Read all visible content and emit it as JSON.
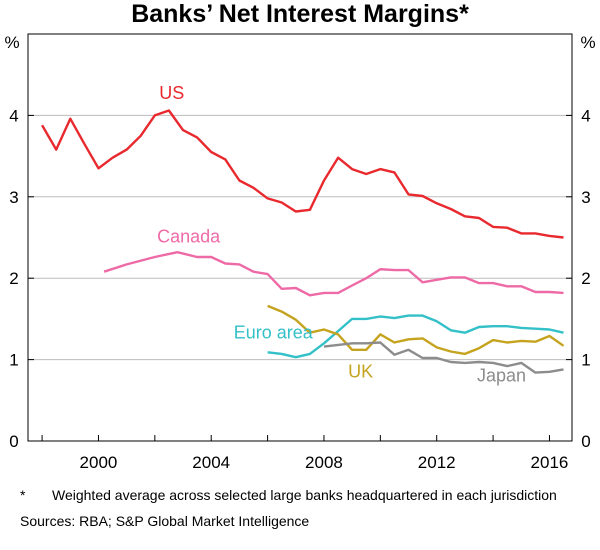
{
  "chart_data": {
    "type": "line",
    "title": "Banks’ Net Interest Margins*",
    "unit_left": "%",
    "unit_right": "%",
    "xlabel": "",
    "ylabel": "%",
    "xlim": [
      1997.5,
      2016.8
    ],
    "ylim": [
      0,
      5
    ],
    "y_ticks": [
      0,
      1,
      2,
      3,
      4
    ],
    "x_tick_labels": [
      {
        "value": 2000,
        "label": "2000"
      },
      {
        "value": 2004,
        "label": "2004"
      },
      {
        "value": 2008,
        "label": "2008"
      },
      {
        "value": 2012,
        "label": "2012"
      },
      {
        "value": 2016,
        "label": "2016"
      }
    ],
    "minor_x_ticks": [
      1998,
      2000,
      2002,
      2004,
      2006,
      2008,
      2010,
      2012,
      2014,
      2016
    ],
    "gridlines": "horizontal",
    "series": [
      {
        "name": "US",
        "color": "#e8292e",
        "x": [
          1998,
          1998.5,
          1999,
          1999.5,
          2000,
          2000.5,
          2001,
          2001.5,
          2002,
          2002.5,
          2003,
          2003.5,
          2004,
          2004.5,
          2005,
          2005.5,
          2006,
          2006.5,
          2007,
          2007.5,
          2008,
          2008.5,
          2009,
          2009.5,
          2010,
          2010.5,
          2011,
          2011.5,
          2012,
          2012.5,
          2013,
          2013.5,
          2014,
          2014.5,
          2015,
          2015.5,
          2016,
          2016.5
        ],
        "values": [
          3.88,
          3.58,
          3.96,
          3.65,
          3.35,
          3.48,
          3.58,
          3.75,
          4.0,
          4.06,
          3.82,
          3.73,
          3.55,
          3.46,
          3.2,
          3.11,
          2.98,
          2.93,
          2.82,
          2.84,
          3.2,
          3.48,
          3.34,
          3.28,
          3.34,
          3.3,
          3.03,
          3.01,
          2.92,
          2.85,
          2.76,
          2.74,
          2.63,
          2.62,
          2.55,
          2.55,
          2.52,
          2.5
        ]
      },
      {
        "name": "Canada",
        "color": "#ee6aa7",
        "x": [
          2000.2,
          2001,
          2002,
          2002.8,
          2003.5,
          2004,
          2004.5,
          2005,
          2005.5,
          2006,
          2006.5,
          2007,
          2007.5,
          2008,
          2008.5,
          2009,
          2009.5,
          2010,
          2010.5,
          2011,
          2011.5,
          2012,
          2012.5,
          2013,
          2013.5,
          2014,
          2014.5,
          2015,
          2015.5,
          2016,
          2016.5
        ],
        "values": [
          2.08,
          2.17,
          2.26,
          2.32,
          2.26,
          2.26,
          2.18,
          2.17,
          2.08,
          2.05,
          1.87,
          1.88,
          1.79,
          1.82,
          1.82,
          1.91,
          2.0,
          2.11,
          2.1,
          2.1,
          1.95,
          1.98,
          2.01,
          2.01,
          1.94,
          1.94,
          1.9,
          1.9,
          1.83,
          1.83,
          1.82
        ]
      },
      {
        "name": "Euro area",
        "color": "#33c0c8",
        "x": [
          2006,
          2006.5,
          2007,
          2007.5,
          2008,
          2008.5,
          2009,
          2009.5,
          2010,
          2010.5,
          2011,
          2011.5,
          2012,
          2012.5,
          2013,
          2013.5,
          2014,
          2014.5,
          2015,
          2015.5,
          2016,
          2016.5
        ],
        "values": [
          1.09,
          1.07,
          1.03,
          1.07,
          1.2,
          1.35,
          1.5,
          1.5,
          1.53,
          1.51,
          1.54,
          1.54,
          1.47,
          1.36,
          1.33,
          1.4,
          1.41,
          1.41,
          1.39,
          1.38,
          1.37,
          1.33
        ]
      },
      {
        "name": "UK",
        "color": "#c5a31e",
        "x": [
          2006,
          2006.5,
          2007,
          2007.5,
          2008,
          2008.5,
          2009,
          2009.5,
          2010,
          2010.5,
          2011,
          2011.5,
          2012,
          2012.5,
          2013,
          2013.5,
          2014,
          2014.5,
          2015,
          2015.5,
          2016,
          2016.5
        ],
        "values": [
          1.66,
          1.59,
          1.49,
          1.33,
          1.37,
          1.31,
          1.12,
          1.12,
          1.31,
          1.21,
          1.25,
          1.26,
          1.15,
          1.1,
          1.07,
          1.14,
          1.24,
          1.21,
          1.23,
          1.22,
          1.29,
          1.17
        ]
      },
      {
        "name": "Japan",
        "color": "#8c8c8c",
        "x": [
          2008,
          2008.5,
          2009,
          2009.5,
          2010,
          2010.5,
          2011,
          2011.5,
          2012,
          2012.5,
          2013,
          2013.5,
          2014,
          2014.5,
          2015,
          2015.5,
          2016,
          2016.5
        ],
        "values": [
          1.16,
          1.18,
          1.2,
          1.2,
          1.21,
          1.06,
          1.12,
          1.02,
          1.02,
          0.97,
          0.96,
          0.97,
          0.96,
          0.92,
          0.96,
          0.84,
          0.85,
          0.88
        ]
      }
    ],
    "series_labels": [
      {
        "series": "US",
        "text": "US",
        "x": 2002.6,
        "y": 4.2
      },
      {
        "series": "Canada",
        "text": "Canada",
        "x": 2003.2,
        "y": 2.44
      },
      {
        "series": "Euro area",
        "text": "Euro area",
        "x": 2006.2,
        "y": 1.26
      },
      {
        "series": "UK",
        "text": "UK",
        "x": 2009.3,
        "y": 0.78
      },
      {
        "series": "Japan",
        "text": "Japan",
        "x": 2014.3,
        "y": 0.73
      }
    ]
  },
  "notes": {
    "footnote_mark": "*",
    "footnote_text": "Weighted average across selected large banks headquartered in each jurisdiction",
    "sources": "Sources:  RBA; S&P Global Market Intelligence"
  }
}
